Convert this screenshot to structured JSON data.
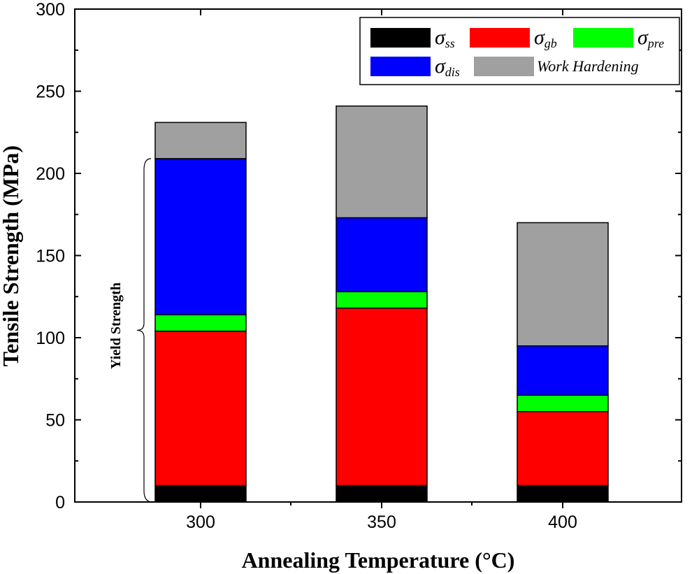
{
  "chart_data": {
    "type": "bar",
    "stacked": true,
    "title": "",
    "xlabel": "Annealing Temperature (°C)",
    "ylabel": "Tensile Strength (MPa)",
    "categories": [
      "300",
      "350",
      "400"
    ],
    "ylim": [
      0,
      300
    ],
    "yticks": [
      "0",
      "50",
      "100",
      "150",
      "200",
      "250",
      "300"
    ],
    "grid": false,
    "legend_position": "top-right",
    "series": [
      {
        "name": "σss",
        "symbol": "σ",
        "subscript": "ss",
        "color": "#000000",
        "values": [
          10,
          10,
          10
        ]
      },
      {
        "name": "σgb",
        "symbol": "σ",
        "subscript": "gb",
        "color": "#ff0000",
        "values": [
          94,
          108,
          45
        ]
      },
      {
        "name": "σpre",
        "symbol": "σ",
        "subscript": "pre",
        "color": "#00ff00",
        "values": [
          10,
          10,
          10
        ]
      },
      {
        "name": "σdis",
        "symbol": "σ",
        "subscript": "dis",
        "color": "#0000ff",
        "values": [
          95,
          45,
          30
        ]
      },
      {
        "name": "Work Hardening",
        "color": "#a0a0a0",
        "values": [
          22,
          68,
          75
        ]
      }
    ],
    "annotations": [
      {
        "text": "Yield Strength",
        "range": [
          0,
          209
        ]
      }
    ]
  }
}
